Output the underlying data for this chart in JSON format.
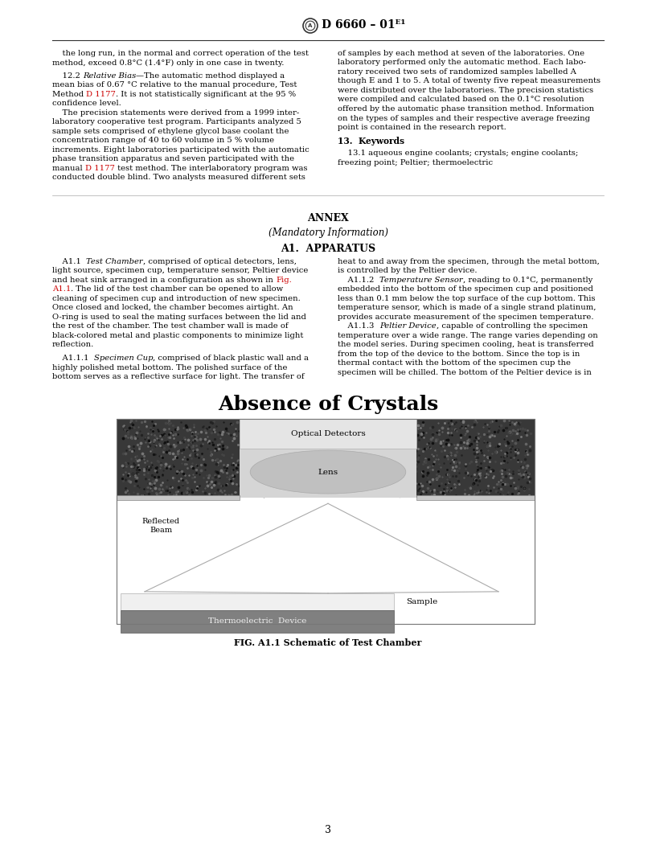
{
  "page_width": 8.16,
  "page_height": 10.56,
  "bg_color": "#ffffff",
  "header_text": "D 6660 – 01ᴱ¹",
  "body_fontsize": 7.2,
  "body_font": "DejaVu Serif",
  "link_color": "#cc0000",
  "text_color": "#000000",
  "diagram_title": "Absence of Crystals",
  "fig_caption": "FIG. A1.1 Schematic of Test Chamber",
  "page_num": "3",
  "left_col_lines": [
    "    the long run, in the normal and correct operation of the test",
    "method, exceed 0.8°C (1.4°F) only in one case in twenty.",
    "",
    "    12.2 [I:Relative Bias]—The automatic method displayed a",
    "mean bias of 0.67 °C relative to the manual procedure, Test",
    "Method [R:D 1177]. It is not statistically significant at the 95 %",
    "confidence level.",
    "    The precision statements were derived from a 1999 inter-",
    "laboratory cooperative test program. Participants analyzed 5",
    "sample sets comprised of ethylene glycol base coolant the",
    "concentration range of 40 to 60 volume in 5 % volume",
    "increments. Eight laboratories participated with the automatic",
    "phase transition apparatus and seven participated with the",
    "manual [R:D 1177] test method. The interlaboratory program was",
    "conducted double blind. Two analysts measured different sets"
  ],
  "right_col_lines": [
    "of samples by each method at seven of the laboratories. One",
    "laboratory performed only the automatic method. Each labo-",
    "ratory received two sets of randomized samples labelled A",
    "though E and 1 to 5. A total of twenty five repeat measurements",
    "were distributed over the laboratories. The precision statistics",
    "were compiled and calculated based on the 0.1°C resolution",
    "offered by the automatic phase transition method. Information",
    "on the types of samples and their respective average freezing",
    "point is contained in the research report.",
    "",
    "[B:13.  Keywords]",
    "",
    "    13.1 aqueous engine coolants; crystals; engine coolants;",
    "freezing point; Peltier; thermoelectric"
  ],
  "annex_left_lines": [
    "    A1.1  [I:Test Chamber], comprised of optical detectors, lens,",
    "light source, specimen cup, temperature sensor, Peltier device",
    "and heat sink arranged in a configuration as shown in [R:Fig.]",
    "[R:A1.1]. The lid of the test chamber can be opened to allow",
    "cleaning of specimen cup and introduction of new specimen.",
    "Once closed and locked, the chamber becomes airtight. An",
    "O-ring is used to seal the mating surfaces between the lid and",
    "the rest of the chamber. The test chamber wall is made of",
    "black-colored metal and plastic components to minimize light",
    "reflection.",
    "",
    "    A1.1.1  [I:Specimen Cup], comprised of black plastic wall and a",
    "highly polished metal bottom. The polished surface of the",
    "bottom serves as a reflective surface for light. The transfer of"
  ],
  "annex_right_lines": [
    "heat to and away from the specimen, through the metal bottom,",
    "is controlled by the Peltier device.",
    "    A1.1.2  [I:Temperature Sensor], reading to 0.1°C, permanently",
    "embedded into the bottom of the specimen cup and positioned",
    "less than 0.1 mm below the top surface of the cup bottom. This",
    "temperature sensor, which is made of a single strand platinum,",
    "provides accurate measurement of the specimen temperature.",
    "    A1.1.3  [I:Peltier Device], capable of controlling the specimen",
    "temperature over a wide range. The range varies depending on",
    "the model series. During specimen cooling, heat is transferred",
    "from the top of the device to the bottom. Since the top is in",
    "thermal contact with the bottom of the specimen cup the",
    "specimen will be chilled. The bottom of the Peltier device is in"
  ]
}
